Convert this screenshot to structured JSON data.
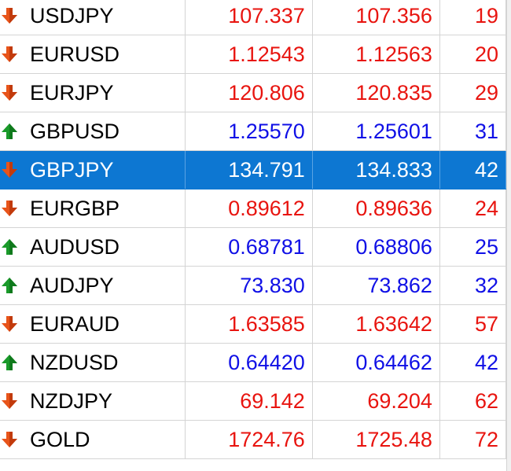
{
  "colors": {
    "down_text": "#e8140f",
    "up_text": "#1010e6",
    "selected_bg": "#0d77d2",
    "selected_text": "#ffffff",
    "down_arrow": "#e8541a",
    "up_arrow": "#1a9a2a"
  },
  "rows": [
    {
      "symbol": "USDJPY",
      "bid": "107.337",
      "ask": "107.356",
      "spread": "19",
      "direction": "down",
      "icon": "down-arrow-icon",
      "selected": false
    },
    {
      "symbol": "EURUSD",
      "bid": "1.12543",
      "ask": "1.12563",
      "spread": "20",
      "direction": "down",
      "icon": "down-arrow-icon",
      "selected": false
    },
    {
      "symbol": "EURJPY",
      "bid": "120.806",
      "ask": "120.835",
      "spread": "29",
      "direction": "down",
      "icon": "down-arrow-icon",
      "selected": false
    },
    {
      "symbol": "GBPUSD",
      "bid": "1.25570",
      "ask": "1.25601",
      "spread": "31",
      "direction": "up",
      "icon": "up-arrow-icon",
      "selected": false
    },
    {
      "symbol": "GBPJPY",
      "bid": "134.791",
      "ask": "134.833",
      "spread": "42",
      "direction": "down",
      "icon": "down-arrow-icon",
      "selected": true
    },
    {
      "symbol": "EURGBP",
      "bid": "0.89612",
      "ask": "0.89636",
      "spread": "24",
      "direction": "down",
      "icon": "down-arrow-icon",
      "selected": false
    },
    {
      "symbol": "AUDUSD",
      "bid": "0.68781",
      "ask": "0.68806",
      "spread": "25",
      "direction": "up",
      "icon": "up-arrow-icon",
      "selected": false
    },
    {
      "symbol": "AUDJPY",
      "bid": "73.830",
      "ask": "73.862",
      "spread": "32",
      "direction": "up",
      "icon": "up-arrow-icon",
      "selected": false
    },
    {
      "symbol": "EURAUD",
      "bid": "1.63585",
      "ask": "1.63642",
      "spread": "57",
      "direction": "down",
      "icon": "down-arrow-icon",
      "selected": false
    },
    {
      "symbol": "NZDUSD",
      "bid": "0.64420",
      "ask": "0.64462",
      "spread": "42",
      "direction": "up",
      "icon": "up-arrow-icon",
      "selected": false
    },
    {
      "symbol": "NZDJPY",
      "bid": "69.142",
      "ask": "69.204",
      "spread": "62",
      "direction": "down",
      "icon": "down-arrow-icon",
      "selected": false
    },
    {
      "symbol": "GOLD",
      "bid": "1724.76",
      "ask": "1725.48",
      "spread": "72",
      "direction": "down",
      "icon": "down-arrow-icon",
      "selected": false
    }
  ]
}
